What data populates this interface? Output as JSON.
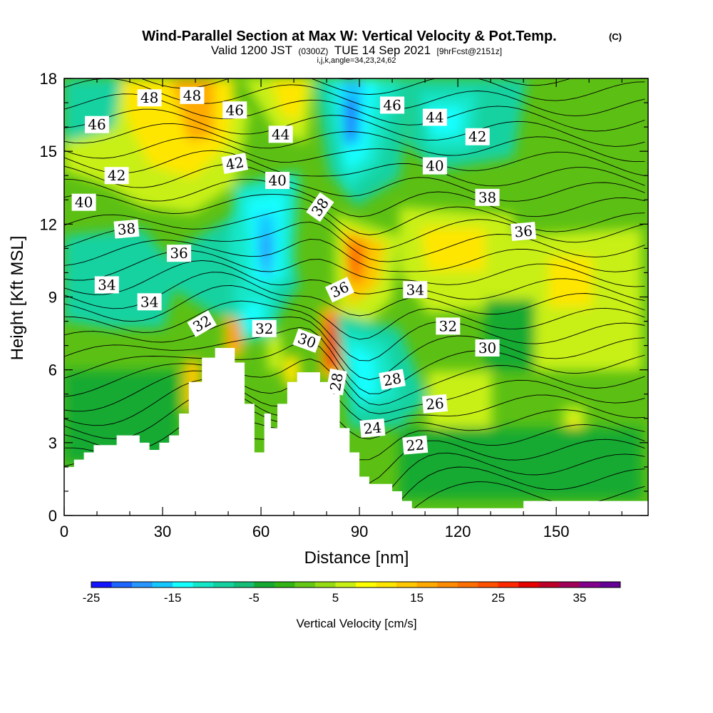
{
  "chart_data": {
    "type": "heatmap",
    "title": "Wind-Parallel Section at Max W: Vertical Velocity & Pot.Temp.",
    "title_mark": "(C)",
    "subtitle": {
      "valid": "Valid 1200 JST",
      "utc": "(0300Z)",
      "date": "TUE 14 Sep 2021",
      "forecast": "[9hrFcst@2151z]"
    },
    "params": "i,j,k,angle=34,23,24,62",
    "xlabel": "Distance [nm]",
    "ylabel": "Height [Kft MSL]",
    "xlim": [
      0,
      178
    ],
    "ylim": [
      0,
      18
    ],
    "x_ticks": [
      "0",
      "30",
      "60",
      "90",
      "120",
      "150"
    ],
    "y_ticks": [
      "0",
      "3",
      "6",
      "9",
      "12",
      "15",
      "18"
    ],
    "colorbar": {
      "label": "Vertical Velocity [cm/s]",
      "min": -25,
      "max": 40,
      "step": 2.5,
      "ticks": [
        "-25",
        "-15",
        "-5",
        "5",
        "15",
        "25",
        "35"
      ],
      "colors": [
        "#1414ff",
        "#1e64ff",
        "#2896ff",
        "#14c8ff",
        "#14ffff",
        "#14e6c8",
        "#14d2a0",
        "#14be78",
        "#14aa32",
        "#32b414",
        "#64c814",
        "#96dc14",
        "#c8f014",
        "#ffff00",
        "#ffe600",
        "#ffc800",
        "#ffaa00",
        "#ff8c00",
        "#ff6e00",
        "#ff5000",
        "#ff2800",
        "#e60000",
        "#be0028",
        "#a0005a",
        "#82008c",
        "#640096"
      ]
    },
    "terrain_kft": [
      [
        0,
        2
      ],
      [
        3,
        2
      ],
      [
        3,
        2.3
      ],
      [
        6,
        2.3
      ],
      [
        6,
        2.6
      ],
      [
        9,
        2.6
      ],
      [
        9,
        2.9
      ],
      [
        16,
        2.9
      ],
      [
        16,
        3.3
      ],
      [
        23,
        3.3
      ],
      [
        23,
        3
      ],
      [
        26,
        3
      ],
      [
        26,
        2.7
      ],
      [
        29,
        2.7
      ],
      [
        29,
        3
      ],
      [
        32,
        3
      ],
      [
        32,
        3.3
      ],
      [
        35,
        3.3
      ],
      [
        35,
        4.2
      ],
      [
        38,
        4.2
      ],
      [
        38,
        5.5
      ],
      [
        42,
        5.5
      ],
      [
        42,
        6.5
      ],
      [
        46,
        6.5
      ],
      [
        46,
        6.9
      ],
      [
        52,
        6.9
      ],
      [
        52,
        6.3
      ],
      [
        55,
        6.3
      ],
      [
        55,
        4.6
      ],
      [
        58,
        4.6
      ],
      [
        58,
        2.6
      ],
      [
        61,
        2.6
      ],
      [
        61,
        4.2
      ],
      [
        63,
        4.2
      ],
      [
        63,
        3.6
      ],
      [
        65,
        3.6
      ],
      [
        65,
        4.6
      ],
      [
        68,
        4.6
      ],
      [
        68,
        5.5
      ],
      [
        71,
        5.5
      ],
      [
        71,
        5.9
      ],
      [
        78,
        5.9
      ],
      [
        78,
        5.5
      ],
      [
        82,
        5.5
      ],
      [
        82,
        5
      ],
      [
        84,
        5
      ],
      [
        84,
        3.6
      ],
      [
        87,
        3.6
      ],
      [
        87,
        2.6
      ],
      [
        90,
        2.6
      ],
      [
        90,
        1.6
      ],
      [
        93,
        1.6
      ],
      [
        93,
        1.3
      ],
      [
        100,
        1.3
      ],
      [
        100,
        1
      ],
      [
        103,
        1
      ],
      [
        103,
        0.6
      ],
      [
        106,
        0.6
      ],
      [
        106,
        0.3
      ],
      [
        140,
        0.3
      ],
      [
        140,
        0.6
      ],
      [
        178,
        0.6
      ],
      [
        178,
        0
      ],
      [
        0,
        0
      ]
    ],
    "theta_labels": [
      {
        "text": "48",
        "x": 26,
        "y": 17.2,
        "rot": 0
      },
      {
        "text": "48",
        "x": 39,
        "y": 17.3,
        "rot": 0
      },
      {
        "text": "46",
        "x": 10,
        "y": 16.1,
        "rot": 0
      },
      {
        "text": "46",
        "x": 52,
        "y": 16.7,
        "rot": 0
      },
      {
        "text": "46",
        "x": 100,
        "y": 16.9,
        "rot": 0
      },
      {
        "text": "44",
        "x": 66,
        "y": 15.7,
        "rot": 0
      },
      {
        "text": "44",
        "x": 113,
        "y": 16.4,
        "rot": 0
      },
      {
        "text": "42",
        "x": 16,
        "y": 14.0,
        "rot": 0
      },
      {
        "text": "42",
        "x": 52,
        "y": 14.5,
        "rot": -10
      },
      {
        "text": "42",
        "x": 126,
        "y": 15.6,
        "rot": 0
      },
      {
        "text": "40",
        "x": 6,
        "y": 12.9,
        "rot": 0
      },
      {
        "text": "40",
        "x": 65,
        "y": 13.8,
        "rot": 0
      },
      {
        "text": "40",
        "x": 113,
        "y": 14.4,
        "rot": 0
      },
      {
        "text": "38",
        "x": 19,
        "y": 11.8,
        "rot": -5
      },
      {
        "text": "38",
        "x": 78,
        "y": 12.7,
        "rot": -55
      },
      {
        "text": "38",
        "x": 129,
        "y": 13.1,
        "rot": 0
      },
      {
        "text": "36",
        "x": 35,
        "y": 10.8,
        "rot": 0
      },
      {
        "text": "36",
        "x": 84,
        "y": 9.3,
        "rot": -25
      },
      {
        "text": "36",
        "x": 140,
        "y": 11.7,
        "rot": -5
      },
      {
        "text": "34",
        "x": 13,
        "y": 9.5,
        "rot": 0
      },
      {
        "text": "34",
        "x": 26,
        "y": 8.8,
        "rot": 0
      },
      {
        "text": "34",
        "x": 107,
        "y": 9.3,
        "rot": 0
      },
      {
        "text": "32",
        "x": 42,
        "y": 7.9,
        "rot": -30
      },
      {
        "text": "32",
        "x": 61,
        "y": 7.7,
        "rot": 0
      },
      {
        "text": "32",
        "x": 117,
        "y": 7.8,
        "rot": 0
      },
      {
        "text": "30",
        "x": 74,
        "y": 7.2,
        "rot": 20
      },
      {
        "text": "30",
        "x": 129,
        "y": 6.9,
        "rot": 0
      },
      {
        "text": "28",
        "x": 83,
        "y": 5.5,
        "rot": -80
      },
      {
        "text": "28",
        "x": 100,
        "y": 5.6,
        "rot": -10
      },
      {
        "text": "26",
        "x": 113,
        "y": 4.6,
        "rot": -5
      },
      {
        "text": "24",
        "x": 94,
        "y": 3.6,
        "rot": -5
      },
      {
        "text": "22",
        "x": 107,
        "y": 2.9,
        "rot": -5
      }
    ]
  }
}
